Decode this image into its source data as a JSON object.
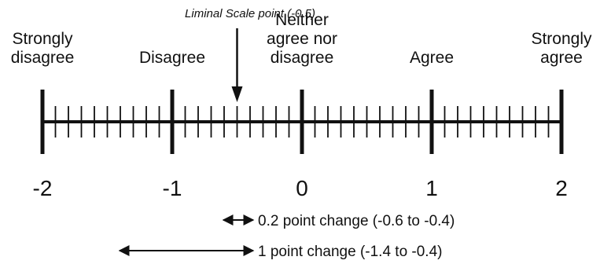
{
  "scale": {
    "min": -2,
    "max": 2,
    "minor_step": 0.1,
    "anchors": [
      {
        "value": -2,
        "number_label": "-2",
        "lines": [
          "Strongly",
          "disagree"
        ]
      },
      {
        "value": -1,
        "number_label": "-1",
        "lines": [
          "Disagree"
        ]
      },
      {
        "value": 0,
        "number_label": "0",
        "lines": [
          "Neither",
          "agree nor",
          "disagree"
        ]
      },
      {
        "value": 1,
        "number_label": "1",
        "lines": [
          "Agree"
        ]
      },
      {
        "value": 2,
        "number_label": "2",
        "lines": [
          "Strongly",
          "agree"
        ]
      }
    ]
  },
  "callout": {
    "label": "Liminal Scale point (-0.5)",
    "value": -0.5
  },
  "changes": [
    {
      "label": "0.2 point change (-0.6 to -0.4)",
      "from": -0.6,
      "to": -0.4
    },
    {
      "label": "1 point change (-1.4 to -0.4)",
      "from": -1.4,
      "to": -0.4
    }
  ],
  "colors": {
    "ink": "#111111",
    "background": "#ffffff"
  }
}
